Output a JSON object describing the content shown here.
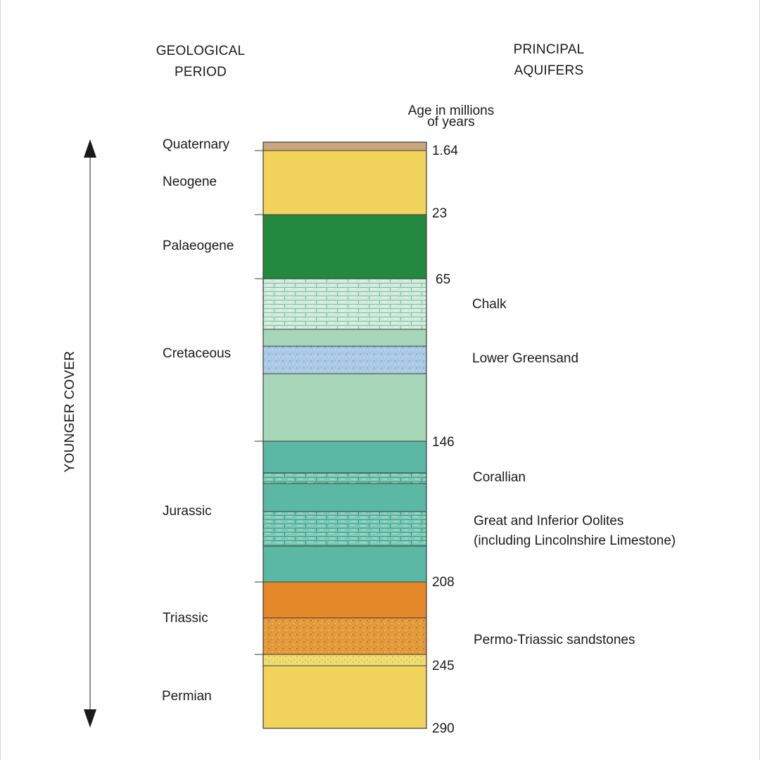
{
  "headers": {
    "period_line1": "GEOLOGICAL",
    "period_line2": "PERIOD",
    "aquifers_line1": "PRINCIPAL",
    "aquifers_line2": "AQUIFERS",
    "age_line1": "Age in millions",
    "age_line2": "of years"
  },
  "axis_label": "YOUNGER COVER",
  "periods": [
    "Quaternary",
    "Neogene",
    "Palaeogene",
    "Cretaceous",
    "Jurassic",
    "Triassic",
    "Permian"
  ],
  "ages": [
    "1.64",
    "23",
    "65",
    "146",
    "208",
    "245",
    "290"
  ],
  "aquifers": {
    "chalk": "Chalk",
    "lower_greensand": "Lower Greensand",
    "corallian": "Corallian",
    "oolites_line1": "Great and Inferior Oolites",
    "oolites_line2": "(including Lincolnshire Limestone)",
    "permo_triassic": "Permo-Triassic sandstones"
  },
  "colors": {
    "quaternary": "#c9a77a",
    "neogene": "#f2d45c",
    "palaeogene": "#22893e",
    "cretaceous": "#a8d6b8",
    "chalk": "#c8e8d6",
    "lower_greensand": "#a9c9e6",
    "jurassic": "#5ab8a5",
    "triassic": "#e4882a",
    "sandstone": "#e39a3a",
    "permian": "#f2d45c"
  }
}
